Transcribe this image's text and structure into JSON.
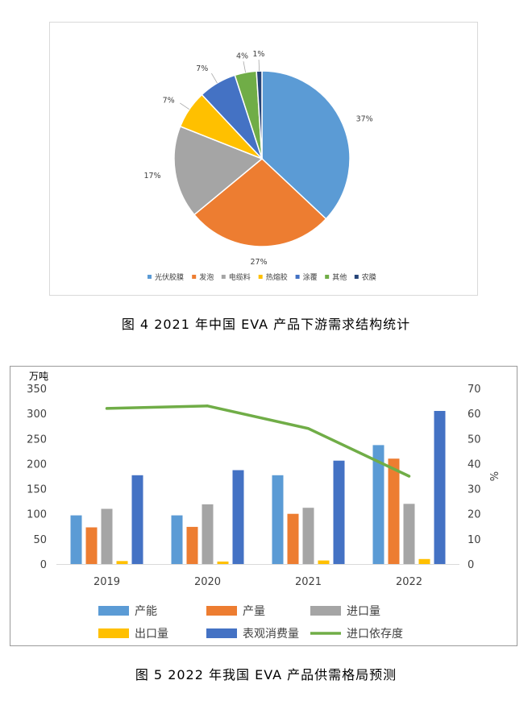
{
  "chart_data": [
    {
      "type": "pie",
      "categories": [
        "光伏胶膜",
        "发泡",
        "电缆料",
        "热熔胶",
        "涂覆",
        "其他",
        "农膜"
      ],
      "values": [
        37,
        27,
        17,
        7,
        7,
        4,
        1
      ],
      "data_labels": [
        "37%",
        "27%",
        "17%",
        "7%",
        "7%",
        "4%",
        "1%"
      ],
      "colors": [
        "#5b9bd5",
        "#ed7d31",
        "#a5a5a5",
        "#ffc000",
        "#4472c4",
        "#70ad47",
        "#264478"
      ],
      "legend_position": "bottom",
      "caption": "图 4  2021 年中国 EVA 产品下游需求结构统计"
    },
    {
      "type": "bar",
      "categories": [
        "2019",
        "2020",
        "2021",
        "2022"
      ],
      "series": [
        {
          "name": "产能",
          "type": "bar",
          "axis": "left",
          "color": "#5b9bd5",
          "values": [
            97,
            97,
            177,
            237
          ]
        },
        {
          "name": "产量",
          "type": "bar",
          "axis": "left",
          "color": "#ed7d31",
          "values": [
            73,
            74,
            100,
            210
          ]
        },
        {
          "name": "进口量",
          "type": "bar",
          "axis": "left",
          "color": "#a5a5a5",
          "values": [
            110,
            119,
            112,
            120
          ]
        },
        {
          "name": "出口量",
          "type": "bar",
          "axis": "left",
          "color": "#ffc000",
          "values": [
            6,
            5,
            7,
            10
          ]
        },
        {
          "name": "表观消费量",
          "type": "bar",
          "axis": "left",
          "color": "#4472c4",
          "values": [
            177,
            187,
            206,
            305
          ]
        },
        {
          "name": "进口依存度",
          "type": "line",
          "axis": "right",
          "color": "#70ad47",
          "values": [
            62,
            63,
            54,
            35
          ]
        }
      ],
      "y_left": {
        "unit": "万吨",
        "ylim": [
          0,
          350
        ],
        "ticks": [
          "0",
          "50",
          "100",
          "150",
          "200",
          "250",
          "300",
          "350"
        ]
      },
      "y_right": {
        "unit": "%",
        "ylim": [
          0,
          70
        ],
        "ticks": [
          "0",
          "10",
          "20",
          "30",
          "40",
          "50",
          "60",
          "70"
        ]
      },
      "grid": false,
      "legend_position": "bottom",
      "caption": "图 5  2022 年我国 EVA 产品供需格局预测"
    }
  ]
}
